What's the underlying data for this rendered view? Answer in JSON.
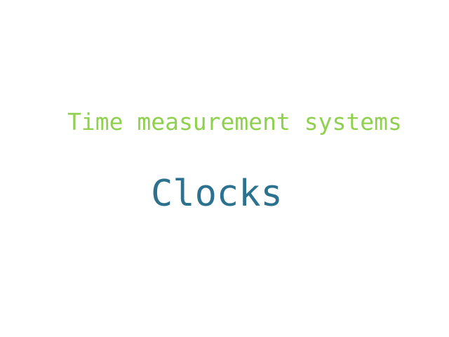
{
  "word_cloud": {
    "words": [
      {
        "text": "Time measurement systems",
        "color": "#8fd14f"
      },
      {
        "text": "Clocks",
        "color": "#2c728e"
      }
    ],
    "background_color": "#ffffff"
  }
}
